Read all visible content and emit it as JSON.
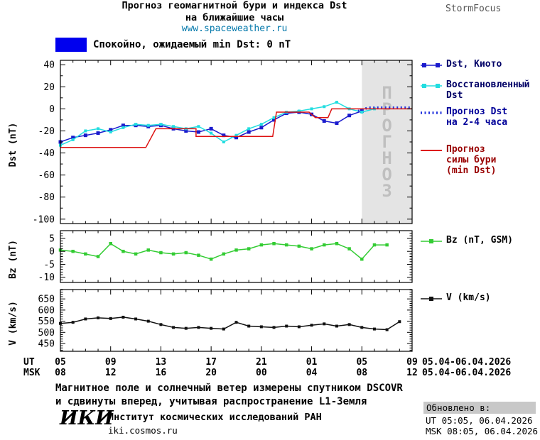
{
  "header": {
    "title_line1": "Прогноз геомагнитной бури и индекса Dst",
    "title_line2": "на ближайшие часы",
    "site": "www.spaceweather.ru",
    "brand": "StormFocus"
  },
  "status": {
    "label": "Спокойно, ожидаемый min Dst: 0 nT"
  },
  "legend": {
    "entries": [
      {
        "id": "dst-kyoto",
        "label": "Dst, Киото",
        "text_color": "#000066"
      },
      {
        "id": "recovered-dst",
        "label": "Восстановленный\nDst",
        "text_color": "#000066"
      },
      {
        "id": "forecast-dst",
        "label": "Прогноз Dst\nна 2-4 часа",
        "text_color": "#000099"
      },
      {
        "id": "storm-forecast",
        "label": "Прогноз\nсилы бури\n(min Dst)",
        "text_color": "#990000"
      },
      {
        "id": "bz",
        "label": "Bz (nT, GSM)",
        "text_color": "#000000"
      },
      {
        "id": "v",
        "label": "V (km/s)",
        "text_color": "#000000"
      }
    ]
  },
  "xaxis": {
    "ut_label": "UT",
    "msk_label": "MSK",
    "ticks_hours": [
      5,
      9,
      13,
      17,
      21,
      25,
      29,
      33
    ],
    "ut_ticks": [
      "05",
      "09",
      "13",
      "17",
      "21",
      "01",
      "05",
      "09"
    ],
    "msk_ticks": [
      "08",
      "12",
      "16",
      "20",
      "00",
      "04",
      "08",
      "12"
    ],
    "ut_date": "05.04-06.04.2026",
    "msk_date": "05.04-06.04.2026"
  },
  "chart_data": [
    {
      "type": "line",
      "panel": "dst",
      "ylabel": "Dst (nT)",
      "ylim": [
        -104,
        44
      ],
      "yticks": [
        40,
        20,
        0,
        -20,
        -40,
        -60,
        -80,
        -100
      ],
      "yminor": 10,
      "xlim": [
        5,
        33
      ],
      "forecast_region": {
        "start": 29,
        "end": 33,
        "label": "ПРОГНОЗ"
      },
      "series": [
        {
          "id": "dst-kyoto",
          "name": "Dst, Киото",
          "color": "#1a1acd",
          "marker": "square",
          "msize": 5,
          "x": [
            5,
            6,
            7,
            8,
            9,
            10,
            11,
            12,
            13,
            14,
            15,
            16,
            17,
            18,
            19,
            20,
            21,
            22,
            23,
            24,
            25,
            26,
            27,
            28,
            29
          ],
          "y": [
            -30,
            -26,
            -24,
            -22,
            -19,
            -15,
            -15,
            -16,
            -15,
            -18,
            -20,
            -21,
            -18,
            -24,
            -26,
            -21,
            -17,
            -10,
            -4,
            -3,
            -5,
            -11,
            -13,
            -6,
            -2
          ]
        },
        {
          "id": "recovered-dst",
          "name": "Восстановленный Dst",
          "color": "#22dde0",
          "marker": "square",
          "msize": 4,
          "x": [
            5,
            6,
            7,
            8,
            9,
            10,
            11,
            12,
            13,
            14,
            15,
            16,
            17,
            18,
            19,
            20,
            21,
            22,
            23,
            24,
            25,
            26,
            27,
            28,
            29,
            30
          ],
          "y": [
            -33,
            -28,
            -20,
            -18,
            -21,
            -17,
            -14,
            -15,
            -14,
            -16,
            -18,
            -16,
            -22,
            -30,
            -24,
            -18,
            -14,
            -8,
            -3,
            -2,
            0,
            2,
            6,
            0,
            -3,
            0
          ]
        },
        {
          "id": "forecast-dst",
          "name": "Прогноз Dst на 2-4 часа",
          "color": "#2233dd",
          "style": "dotted",
          "x": [
            28.7,
            29.5,
            33
          ],
          "y": [
            -2,
            1,
            1
          ]
        },
        {
          "id": "storm-forecast",
          "name": "Прогноз силы бури (min Dst)",
          "color": "#dd1111",
          "x": [
            5,
            11.8,
            12.6,
            15.8,
            15.8,
            21.9,
            22.2,
            24.8,
            25.3,
            26.3,
            26.6,
            33
          ],
          "y": [
            -35,
            -35,
            -18,
            -18,
            -25,
            -25,
            -3,
            -3,
            -8,
            -8,
            0,
            0
          ]
        }
      ]
    },
    {
      "type": "line",
      "panel": "bz",
      "ylabel": "Bz (nT)",
      "ylim": [
        -12,
        8
      ],
      "yticks": [
        5,
        0,
        -5,
        -10
      ],
      "yminor": 1,
      "xlim": [
        5,
        33
      ],
      "series": [
        {
          "id": "bz",
          "name": "Bz (nT, GSM)",
          "color": "#33cc33",
          "marker": "square",
          "msize": 4.5,
          "x": [
            5,
            6,
            7,
            8,
            9,
            10,
            11,
            12,
            13,
            14,
            15,
            16,
            17,
            18,
            19,
            20,
            21,
            22,
            23,
            24,
            25,
            26,
            27,
            28,
            29,
            30,
            31
          ],
          "y": [
            0.5,
            0,
            -1,
            -2,
            3,
            0,
            -1,
            0.5,
            -0.5,
            -1,
            -0.5,
            -1.5,
            -3,
            -1,
            0.5,
            1,
            2.5,
            3,
            2.5,
            2,
            1,
            2.5,
            3,
            1,
            -3,
            2.5,
            2.5
          ]
        }
      ]
    },
    {
      "type": "line",
      "panel": "v",
      "ylabel": "V (km/s)",
      "ylim": [
        415,
        692
      ],
      "yticks": [
        650,
        600,
        550,
        500,
        450
      ],
      "yminor": 10,
      "xlim": [
        5,
        33
      ],
      "series": [
        {
          "id": "solar-wind-speed",
          "name": "V (km/s)",
          "color": "#111111",
          "marker": "square",
          "msize": 4,
          "x": [
            5,
            6,
            7,
            8,
            9,
            10,
            11,
            12,
            13,
            14,
            15,
            16,
            17,
            18,
            19,
            20,
            21,
            22,
            23,
            24,
            25,
            26,
            27,
            28,
            29,
            30,
            31,
            32
          ],
          "y": [
            540,
            545,
            560,
            565,
            562,
            568,
            560,
            550,
            535,
            522,
            518,
            522,
            518,
            515,
            545,
            528,
            525,
            522,
            528,
            525,
            532,
            538,
            528,
            535,
            522,
            515,
            512,
            548
          ]
        }
      ]
    }
  ],
  "footer": {
    "note_line1": "Магнитное поле и солнечный ветер измерены спутником DSCOVR",
    "note_line2": "и сдвинуты вперед, учитывая распространение L1-Земля",
    "logo": "ИКИ",
    "institute": "Институт космических исследований РАН",
    "institute_site": "iki.cosmos.ru",
    "updated_label": "Обновлено в:",
    "updated_ut": "UT  05:05, 06.04.2026",
    "updated_msk": "MSK 08:05, 06.04.2026"
  },
  "colors": {
    "site": "#0077aa",
    "brand": "#555555",
    "status_swatch": "#0000ee",
    "forecast_bg": "#e4e4e4",
    "forecast_text": "#bfbfbf",
    "updated_bg": "#c8c8c8"
  }
}
